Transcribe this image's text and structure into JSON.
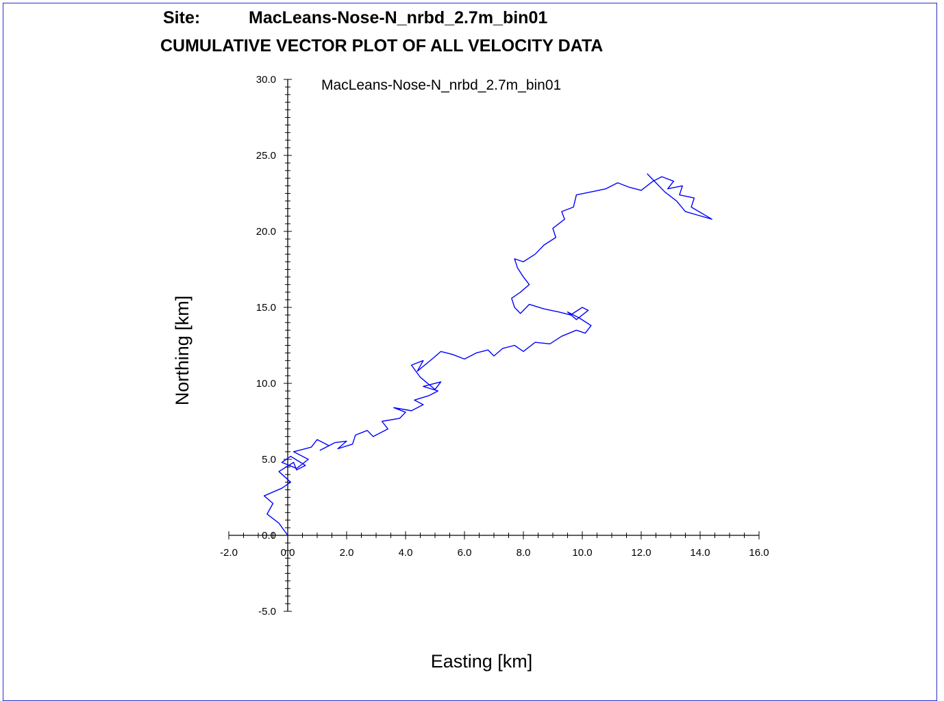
{
  "header": {
    "site_label": "Site:",
    "site_name": "MacLeans-Nose-N_nrbd_2.7m_bin01",
    "title": "CUMULATIVE VECTOR PLOT OF ALL VELOCITY DATA"
  },
  "colors": {
    "trace": "#0000ff",
    "axis": "#000000",
    "frame": "#2b2bd0"
  },
  "chart_data": {
    "type": "line",
    "title": "MacLeans-Nose-N_nrbd_2.7m_bin01",
    "xlabel": "Easting [km]",
    "ylabel": "Northing [km]",
    "xlim": [
      -2.0,
      16.0
    ],
    "ylim": [
      -5.0,
      30.0
    ],
    "x_ticks": [
      "-2.0",
      "0.0",
      "2.0",
      "4.0",
      "6.0",
      "8.0",
      "10.0",
      "12.0",
      "14.0",
      "16.0"
    ],
    "y_ticks": [
      "-5.0",
      "0.0",
      "5.0",
      "10.0",
      "15.0",
      "20.0",
      "25.0",
      "30.0"
    ],
    "grid": false,
    "series": [
      {
        "color": "#0000ff",
        "x": [
          0.0,
          -0.3,
          -0.7,
          -0.5,
          -0.8,
          -0.2,
          0.1,
          -0.3,
          0.2,
          0.3,
          0.6,
          0.1,
          -0.2,
          0.3,
          0.7,
          0.2,
          0.8,
          1.0,
          1.4,
          1.1,
          1.6,
          2.0,
          1.7,
          2.2,
          2.3,
          2.7,
          2.9,
          3.4,
          3.2,
          3.8,
          4.0,
          3.6,
          4.2,
          4.6,
          4.3,
          4.8,
          5.1,
          4.6,
          5.2,
          5.0,
          4.5,
          4.2,
          4.6,
          4.4,
          4.9,
          5.2,
          5.6,
          6.0,
          6.4,
          6.8,
          7.0,
          7.3,
          7.7,
          8.0,
          8.4,
          8.9,
          9.3,
          9.8,
          10.1,
          10.3,
          9.9,
          9.5,
          9.8,
          10.2,
          10.0,
          9.6,
          9.2,
          8.7,
          8.2,
          7.9,
          7.7,
          7.6,
          7.9,
          8.2,
          8.0,
          7.8,
          7.7,
          8.0,
          8.4,
          8.7,
          9.1,
          9.0,
          9.4,
          9.3,
          9.7,
          9.8,
          10.3,
          10.8,
          11.2,
          11.6,
          12.0,
          12.4,
          12.7,
          13.1,
          12.9,
          13.4,
          13.3,
          13.8,
          13.7,
          14.4,
          13.5,
          13.2,
          12.8,
          12.5,
          12.2
        ],
        "y": [
          0.0,
          0.8,
          1.4,
          2.1,
          2.6,
          3.1,
          3.5,
          4.2,
          4.8,
          4.3,
          4.6,
          5.2,
          4.8,
          4.4,
          5.0,
          5.5,
          5.8,
          6.3,
          5.9,
          5.6,
          6.1,
          6.2,
          5.7,
          6.0,
          6.6,
          6.9,
          6.5,
          7.0,
          7.5,
          7.7,
          8.1,
          8.4,
          8.2,
          8.6,
          8.9,
          9.2,
          9.5,
          9.8,
          10.1,
          9.6,
          10.4,
          11.2,
          11.5,
          10.8,
          11.6,
          12.1,
          11.9,
          11.6,
          12.0,
          12.2,
          11.8,
          12.3,
          12.5,
          12.1,
          12.7,
          12.6,
          13.1,
          13.5,
          13.3,
          13.8,
          14.3,
          14.7,
          14.2,
          14.8,
          15.0,
          14.5,
          14.7,
          14.9,
          15.2,
          14.6,
          15.0,
          15.6,
          16.0,
          16.5,
          17.0,
          17.6,
          18.2,
          18.0,
          18.5,
          19.1,
          19.6,
          20.2,
          20.8,
          21.3,
          21.6,
          22.4,
          22.6,
          22.8,
          23.2,
          22.9,
          22.7,
          23.3,
          23.6,
          23.3,
          22.8,
          23.0,
          22.4,
          22.2,
          21.6,
          20.8,
          21.3,
          22.0,
          22.6,
          23.2,
          23.8
        ]
      }
    ]
  }
}
